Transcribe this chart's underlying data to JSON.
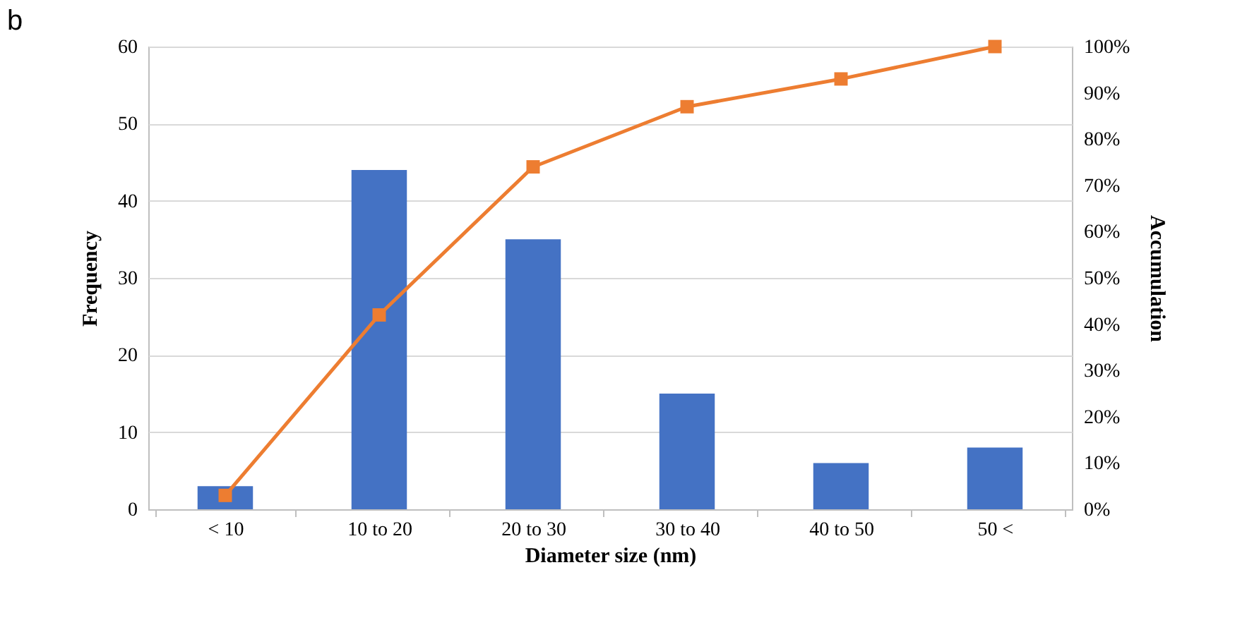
{
  "chart_data": {
    "type": "bar",
    "xlabel": "Diameter size (nm)",
    "ylabel": "Frequency",
    "y2label": "Accumulation",
    "annotations": [
      "b"
    ],
    "categories": [
      "< 10",
      "10 to 20",
      "20 to 30",
      "30 to 40",
      "40 to 50",
      "50 <"
    ],
    "series": [
      {
        "color": "#4472c4",
        "values": [
          3,
          44,
          35,
          15,
          6,
          8
        ]
      },
      {
        "type": "line",
        "axis": "y2",
        "color": "#ed7d31",
        "marker": "square",
        "values": [
          3,
          42,
          74,
          87,
          93,
          100
        ]
      }
    ],
    "ylim": [
      0,
      60
    ],
    "yticks": [
      0,
      10,
      20,
      30,
      40,
      50,
      60
    ],
    "y2lim": [
      0,
      100
    ],
    "y2ticks": [
      {
        "value": 0,
        "label": "0%"
      },
      {
        "value": 10,
        "label": "10%"
      },
      {
        "value": 20,
        "label": "20%"
      },
      {
        "value": 30,
        "label": "30%"
      },
      {
        "value": 40,
        "label": "40%"
      },
      {
        "value": 50,
        "label": "50%"
      },
      {
        "value": 60,
        "label": "60%"
      },
      {
        "value": 70,
        "label": "70%"
      },
      {
        "value": 80,
        "label": "80%"
      },
      {
        "value": 90,
        "label": "90%"
      },
      {
        "value": 100,
        "label": "100%"
      }
    ],
    "grid": "y"
  }
}
